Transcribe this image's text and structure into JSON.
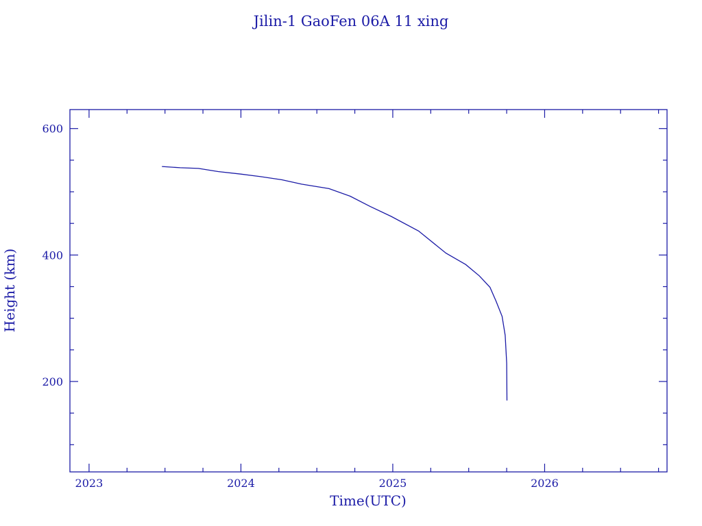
{
  "chart_data": {
    "type": "line",
    "title": "Jilin-1 GaoFen 06A 11 xing",
    "xlabel": "Time(UTC)",
    "ylabel": "Height (km)",
    "xlim": [
      2022.874,
      2026.806
    ],
    "ylim": [
      57,
      630
    ],
    "xticks": [
      2023,
      2024,
      2025,
      2026
    ],
    "xtick_labels": [
      "2023",
      "2024",
      "2025",
      "2026"
    ],
    "yticks": [
      200,
      400,
      600
    ],
    "ytick_labels": [
      "200",
      "400",
      "600"
    ],
    "x_minor_step": 0.25,
    "y_minor_step": 50,
    "grid": false,
    "color": "#1a1aa6",
    "series": [
      {
        "x": [
          2023.48,
          2023.6,
          2023.72,
          2023.85,
          2024.0,
          2024.13,
          2024.27,
          2024.4,
          2024.58,
          2024.72,
          2024.85,
          2024.99,
          2025.17,
          2025.35,
          2025.48,
          2025.57,
          2025.64,
          2025.68,
          2025.72,
          2025.74,
          2025.75,
          2025.752
        ],
        "y": [
          540,
          538,
          537,
          532,
          528,
          524,
          519,
          512,
          505,
          493,
          477,
          461,
          438,
          403,
          385,
          367,
          349,
          327,
          303,
          273,
          229,
          170
        ]
      }
    ]
  }
}
